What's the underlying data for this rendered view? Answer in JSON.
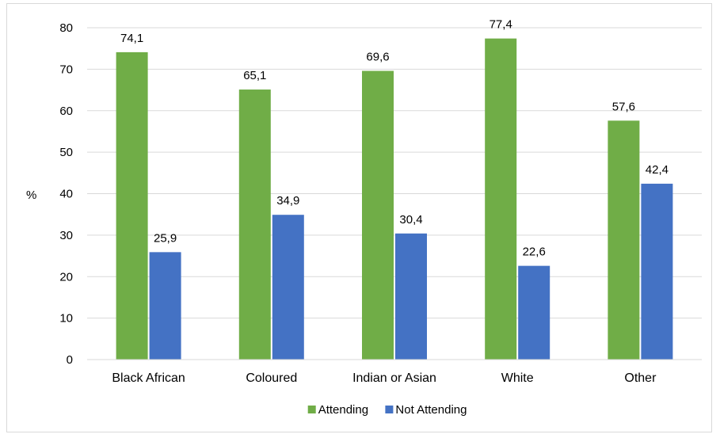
{
  "chart_data": {
    "type": "bar",
    "title": "",
    "xlabel": "",
    "ylabel": "%",
    "categories": [
      "Black African",
      "Coloured",
      "Indian or Asian",
      "White",
      "Other"
    ],
    "series": [
      {
        "name": "Attending",
        "values": [
          74.1,
          65.1,
          69.6,
          77.4,
          57.6
        ],
        "labels": [
          "74,1",
          "65,1",
          "69,6",
          "77,4",
          "57,6"
        ],
        "color": "#70ad47"
      },
      {
        "name": "Not Attending",
        "values": [
          25.9,
          34.9,
          30.4,
          22.6,
          42.4
        ],
        "labels": [
          "25,9",
          "34,9",
          "30,4",
          "22,6",
          "42,4"
        ],
        "color": "#4472c4"
      }
    ],
    "ylim": [
      0,
      80
    ],
    "yticks": [
      0,
      10,
      20,
      30,
      40,
      50,
      60,
      70,
      80
    ],
    "grid": true,
    "gridColor": "#d9d9d9",
    "legend": "bottom"
  }
}
